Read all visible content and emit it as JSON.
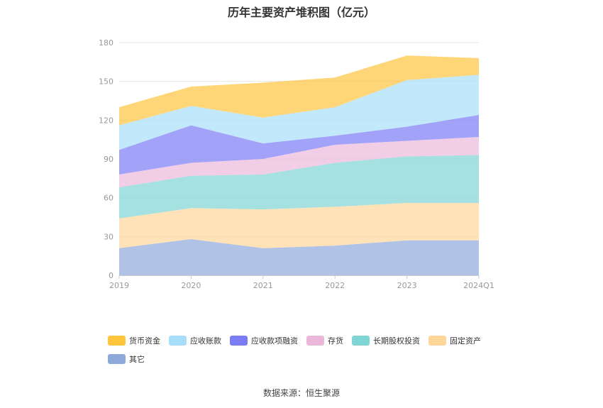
{
  "chart_data": {
    "type": "area",
    "stacked": true,
    "title": "历年主要资产堆积图（亿元）",
    "categories": [
      "2019",
      "2020",
      "2021",
      "2022",
      "2023",
      "2024Q1"
    ],
    "ylim": [
      0,
      180
    ],
    "yticks": [
      0,
      30,
      60,
      90,
      120,
      150,
      180
    ],
    "grid": true,
    "legend_position": "bottom",
    "series": [
      {
        "name": "其它",
        "color": "#8eaadb",
        "values": [
          21,
          28,
          21,
          23,
          27,
          27
        ]
      },
      {
        "name": "固定资产",
        "color": "#ffd69a",
        "values": [
          23,
          24,
          30,
          30,
          29,
          29
        ]
      },
      {
        "name": "长期股权投资",
        "color": "#7fd4d4",
        "values": [
          24,
          25,
          27,
          34,
          36,
          37
        ]
      },
      {
        "name": "存货",
        "color": "#ebb8dc",
        "values": [
          10,
          10,
          12,
          14,
          12,
          14
        ]
      },
      {
        "name": "应收款项融资",
        "color": "#7b7cf5",
        "values": [
          19,
          29,
          12,
          7,
          11,
          17
        ]
      },
      {
        "name": "应收账款",
        "color": "#a8defa",
        "values": [
          19,
          15,
          20,
          22,
          36,
          31
        ]
      },
      {
        "name": "货币资金",
        "color": "#ffc53d",
        "values": [
          14,
          15,
          27,
          23,
          19,
          13
        ]
      }
    ]
  },
  "legend_order": [
    6,
    5,
    4,
    3,
    2,
    1,
    0
  ],
  "source_text": "数据来源：恒生聚源"
}
